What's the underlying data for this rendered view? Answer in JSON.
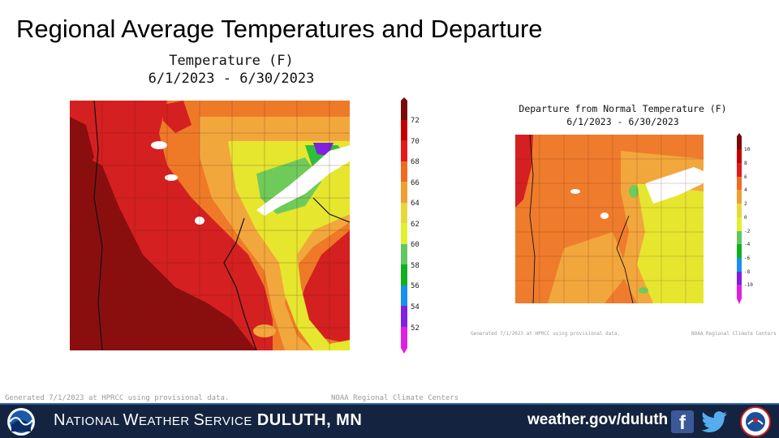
{
  "slide": {
    "title": "Regional Average Temperatures and Departure"
  },
  "left_panel": {
    "title_line1": "Temperature (F)",
    "title_line2": "6/1/2023 - 6/30/2023",
    "footnote_generated": "Generated 7/1/2023 at HPRCC using provisional data.",
    "footnote_source": "NOAA Regional Climate Centers",
    "legend": {
      "labels": [
        "72",
        "70",
        "68",
        "66",
        "64",
        "62",
        "60",
        "58",
        "56",
        "54",
        "52"
      ],
      "colors": [
        "#7a0a0a",
        "#c40000",
        "#e41a1a",
        "#ef6b20",
        "#f0a030",
        "#e8d83a",
        "#e0f030",
        "#60c860",
        "#10b020",
        "#1890f0",
        "#8020e0",
        "#e020e0"
      ]
    },
    "map": {
      "description_colors": {
        "darkest_red": "#8b0e0e",
        "red": "#d42020",
        "orange": "#ee7a28",
        "light_orange": "#f2a73c",
        "yellow": "#e6e62e",
        "green": "#6ecb5a"
      }
    }
  },
  "right_panel": {
    "title_line1": "Departure from Normal Temperature (F)",
    "title_line2": "6/1/2023 - 6/30/2023",
    "footnote_generated": "Generated 7/1/2023 at HPRCC using provisional data.",
    "footnote_source": "NOAA Regional Climate Centers",
    "legend": {
      "labels": [
        "10",
        "8",
        "6",
        "4",
        "2",
        "0",
        "-2",
        "-4",
        "-6",
        "-8",
        "-10"
      ],
      "colors": [
        "#7a0a0a",
        "#c40000",
        "#e41a1a",
        "#ef6b20",
        "#f0a030",
        "#e8d83a",
        "#e0f030",
        "#60c860",
        "#10b020",
        "#1890f0",
        "#8020e0",
        "#e020e0"
      ]
    }
  },
  "footer": {
    "org_prefix_n": "N",
    "org_prefix_rest": "ATIONAL ",
    "org_w": "W",
    "org_w_rest": "EATHER ",
    "org_s": "S",
    "org_s_rest": "ERVICE",
    "office": "DULUTH, MN",
    "link": "weather.gov/duluth",
    "facebook_icon": "facebook-icon",
    "twitter_icon": "twitter-icon",
    "background_color": "#14233f"
  }
}
